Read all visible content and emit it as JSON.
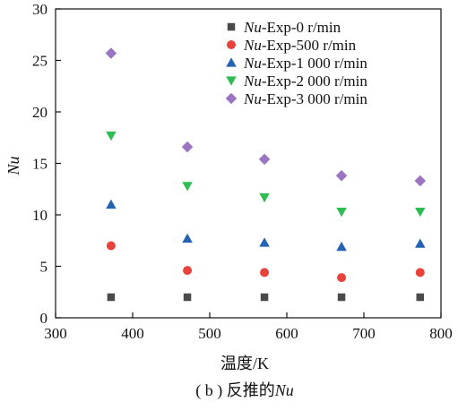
{
  "chart_data": {
    "type": "scatter",
    "caption": {
      "prefix": "( b ) 反推的",
      "italic": "Nu"
    },
    "xlabel": "温度/K",
    "ylabel": "Nu",
    "xlim": [
      300,
      800
    ],
    "ylim": [
      0,
      30
    ],
    "xticks": [
      300,
      400,
      500,
      600,
      700,
      800
    ],
    "yticks": [
      0,
      5,
      10,
      15,
      20,
      25,
      30
    ],
    "grid": false,
    "legend_position": "top-right",
    "x": [
      372,
      471,
      571,
      671,
      773
    ],
    "series": [
      {
        "label_italic": "Nu",
        "label_rest": "-Exp-0 r/min",
        "marker": "square",
        "color": "#4a4a4a",
        "values": [
          2.0,
          2.0,
          2.0,
          2.0,
          2.0
        ]
      },
      {
        "label_italic": "Nu",
        "label_rest": "-Exp-500 r/min",
        "marker": "circle",
        "color": "#e8433a",
        "values": [
          7.0,
          4.6,
          4.4,
          3.9,
          4.4
        ]
      },
      {
        "label_italic": "Nu",
        "label_rest": "-Exp-1 000 r/min",
        "marker": "triangle-up",
        "color": "#2463b3",
        "values": [
          11.0,
          7.7,
          7.3,
          6.9,
          7.2
        ]
      },
      {
        "label_italic": "Nu",
        "label_rest": "-Exp-2 000 r/min",
        "marker": "triangle-down",
        "color": "#2dbd53",
        "values": [
          17.7,
          12.8,
          11.7,
          10.3,
          10.3
        ]
      },
      {
        "label_italic": "Nu",
        "label_rest": "-Exp-3 000 r/min",
        "marker": "diamond",
        "color": "#9b74c2",
        "values": [
          25.7,
          16.6,
          15.4,
          13.8,
          13.3
        ]
      }
    ]
  }
}
